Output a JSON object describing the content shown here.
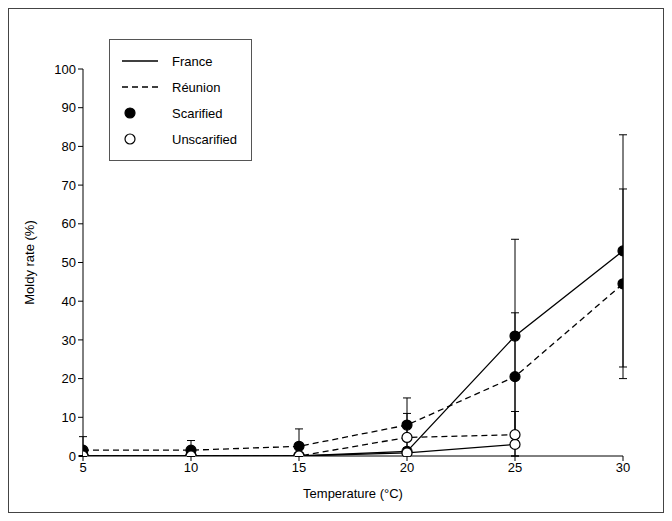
{
  "chart_data": {
    "type": "line",
    "x_label": "Temperature (°C)",
    "y_label": "Moldy rate (%)",
    "x": [
      5,
      10,
      15,
      20,
      25,
      30
    ],
    "xlim": [
      5,
      30
    ],
    "xticks": [
      5,
      10,
      15,
      20,
      25,
      30
    ],
    "ylim": [
      0,
      100
    ],
    "yticks": [
      0,
      10,
      20,
      30,
      40,
      50,
      60,
      70,
      80,
      90,
      100
    ],
    "grid": false,
    "legend": "upper left",
    "legend_entries": [
      {
        "label": "France",
        "line_style": "solid"
      },
      {
        "label": "Réunion",
        "line_style": "dashed"
      },
      {
        "label": "Scarified",
        "marker": "filled"
      },
      {
        "label": "Unscarified",
        "marker": "open"
      }
    ],
    "series": [
      {
        "site": "France",
        "treatment": "Scarified",
        "line_style": "solid",
        "marker": "filled",
        "color": "#000000",
        "values": [
          0,
          0,
          0,
          1.2,
          31,
          53
        ],
        "errors": [
          [
            0,
            0
          ],
          [
            0,
            0
          ],
          [
            0,
            0
          ],
          [
            1,
            1
          ],
          [
            25,
            25
          ],
          [
            30,
            30
          ]
        ]
      },
      {
        "site": "France",
        "treatment": "Unscarified",
        "line_style": "solid",
        "marker": "open",
        "color": "#000000",
        "values": [
          0,
          0,
          0,
          0.8,
          3,
          null
        ],
        "errors": [
          [
            0,
            0
          ],
          [
            0,
            0
          ],
          [
            0,
            0
          ],
          [
            0.8,
            1
          ],
          [
            3,
            3
          ],
          null
        ]
      },
      {
        "site": "Réunion",
        "treatment": "Scarified",
        "line_style": "dashed",
        "marker": "filled",
        "color": "#000000",
        "values": [
          1.5,
          1.5,
          2.5,
          8,
          20.5,
          44.5
        ],
        "errors": [
          [
            1.5,
            3.5
          ],
          [
            1.5,
            2.5
          ],
          [
            2.5,
            4.5
          ],
          [
            7,
            7
          ],
          [
            16.5,
            16.5
          ],
          [
            24.5,
            24.5
          ]
        ]
      },
      {
        "site": "Réunion",
        "treatment": "Unscarified",
        "line_style": "dashed",
        "marker": "open",
        "color": "#000000",
        "values": [
          0,
          0,
          0,
          4.8,
          5.5,
          null
        ],
        "errors": [
          [
            0,
            0
          ],
          [
            0,
            0
          ],
          [
            0,
            0
          ],
          [
            4.8,
            6.2
          ],
          [
            5.5,
            6
          ],
          null
        ]
      }
    ]
  }
}
